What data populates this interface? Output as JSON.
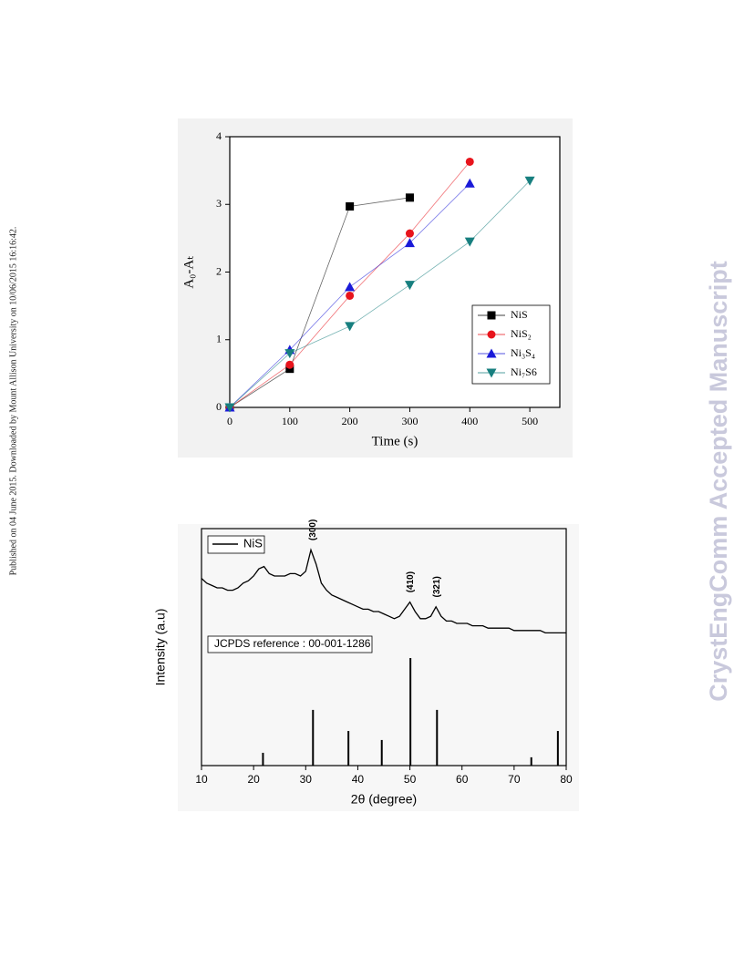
{
  "side_note": "Published on 04 June 2015. Downloaded by Mount Allison University on 10/06/2015 16:16:42.",
  "watermark": "CrystEngComm Accepted Manuscript",
  "chart_data": [
    {
      "type": "line",
      "xlabel": "Time (s)",
      "ylabel": "A₀-Aₜ",
      "xlim": [
        0,
        550
      ],
      "ylim": [
        0,
        4
      ],
      "xticks": [
        0,
        100,
        200,
        300,
        400,
        500
      ],
      "yticks": [
        0,
        1,
        2,
        3,
        4
      ],
      "legend": "right",
      "series": [
        {
          "name": "NiS",
          "color": "#000000",
          "marker": "square",
          "x": [
            0,
            100,
            200,
            300
          ],
          "values": [
            0,
            0.57,
            2.97,
            3.1
          ]
        },
        {
          "name": "NiS₂",
          "color": "#e8141c",
          "marker": "circle",
          "x": [
            0,
            100,
            200,
            300,
            400
          ],
          "values": [
            0,
            0.63,
            1.65,
            2.57,
            3.63
          ]
        },
        {
          "name": "Ni₃S₄",
          "color": "#1a1ad8",
          "marker": "triangle-up",
          "x": [
            0,
            100,
            200,
            300,
            400
          ],
          "values": [
            0,
            0.85,
            1.78,
            2.43,
            3.31
          ]
        },
        {
          "name": "Ni₇S6",
          "color": "#177f7f",
          "marker": "triangle-down",
          "x": [
            0,
            100,
            200,
            300,
            400,
            500
          ],
          "values": [
            0,
            0.8,
            1.2,
            1.81,
            2.45,
            3.35
          ]
        }
      ]
    },
    {
      "type": "line",
      "xlabel": "2θ (degree)",
      "ylabel": "Intensity (a.u)",
      "xlim": [
        10,
        80
      ],
      "ylim": [
        0,
        100
      ],
      "xticks": [
        10,
        20,
        30,
        40,
        50,
        60,
        70,
        80
      ],
      "series": [
        {
          "name": "NiS",
          "color": "#000000",
          "x": [
            10,
            11,
            12,
            13,
            14,
            15,
            16,
            17,
            18,
            19,
            20,
            21,
            22,
            23,
            24,
            25,
            26,
            27,
            28,
            29,
            30,
            31,
            32,
            33,
            34,
            35,
            36,
            37,
            38,
            39,
            40,
            41,
            42,
            43,
            44,
            45,
            46,
            47,
            48,
            49,
            50,
            51,
            52,
            53,
            54,
            55,
            56,
            57,
            58,
            59,
            60,
            61,
            62,
            63,
            64,
            65,
            66,
            67,
            68,
            69,
            70,
            71,
            72,
            73,
            74,
            75,
            76,
            77,
            78,
            79,
            80
          ],
          "values": [
            79,
            77,
            76,
            75,
            75,
            74,
            74,
            75,
            77,
            78,
            80,
            83,
            84,
            81,
            80,
            80,
            80,
            81,
            81,
            80,
            82,
            91,
            85,
            77,
            74,
            72,
            71,
            70,
            69,
            68,
            67,
            66,
            66,
            65,
            65,
            64,
            63,
            62,
            63,
            66,
            69,
            65,
            62,
            62,
            63,
            67,
            63,
            61,
            61,
            60,
            60,
            60,
            59,
            59,
            59,
            58,
            58,
            58,
            58,
            58,
            57,
            57,
            57,
            57,
            57,
            57,
            56,
            56,
            56,
            56,
            56
          ]
        }
      ],
      "annotations": [
        {
          "text": "(300)",
          "x": 31.4
        },
        {
          "text": "(410)",
          "x": 50.1
        },
        {
          "text": "(321)",
          "x": 55.2
        }
      ],
      "reference": {
        "label": "JCPDS reference : 00-001-1286",
        "x": [
          21.8,
          31.4,
          38.2,
          44.6,
          50.1,
          55.2,
          73.3,
          78.4
        ],
        "values": [
          5.4,
          23.5,
          14.6,
          10.8,
          45.4,
          23.5,
          3.5,
          14.6
        ]
      }
    }
  ]
}
